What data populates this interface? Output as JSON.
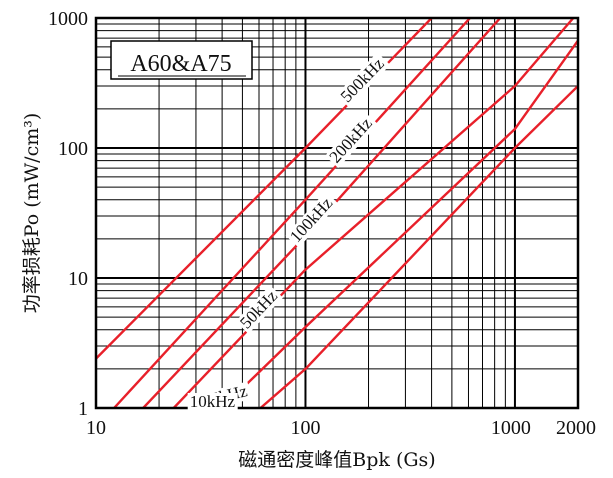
{
  "chart_data": {
    "type": "line",
    "title": "A60&A75",
    "xlabel": "磁通密度峰值Bpk (Gs)",
    "ylabel": "功率损耗Po (mW/cm³)",
    "x_scale": "log",
    "y_scale": "log",
    "xlim": [
      10,
      2000
    ],
    "ylim": [
      1,
      1000
    ],
    "x_ticks": [
      "10",
      "100",
      "1000",
      "2000"
    ],
    "y_ticks": [
      "1",
      "10",
      "100",
      "1000"
    ],
    "grid": true,
    "series_label_placement": "along-line",
    "series": [
      {
        "name": "500kHz",
        "color": "#e8202a",
        "x": [
          10,
          100,
          400
        ],
        "y": [
          2.4,
          100,
          1000
        ]
      },
      {
        "name": "200kHz",
        "color": "#e8202a",
        "x": [
          12.2,
          100,
          610
        ],
        "y": [
          1,
          40,
          1000
        ]
      },
      {
        "name": "100kHz",
        "color": "#e8202a",
        "x": [
          16.8,
          100,
          850
        ],
        "y": [
          1,
          21,
          1000
        ]
      },
      {
        "name": "50kHz",
        "color": "#e8202a",
        "x": [
          23.5,
          100,
          1000,
          1900
        ],
        "y": [
          1,
          11.6,
          300,
          1000
        ]
      },
      {
        "name": "25kHz",
        "color": "#e8202a",
        "x": [
          40,
          100,
          1000,
          2000
        ],
        "y": [
          1,
          4.2,
          140,
          670
        ]
      },
      {
        "name": "10kHz",
        "color": "#e8202a",
        "x": [
          61,
          100,
          1000,
          2000
        ],
        "y": [
          1,
          2,
          100,
          300
        ]
      }
    ]
  }
}
